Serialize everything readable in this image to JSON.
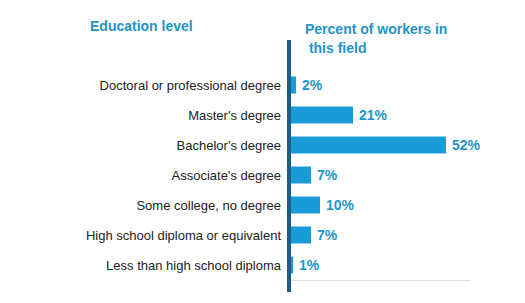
{
  "chart_data": {
    "type": "bar",
    "orientation": "horizontal",
    "ylabel": "Education level",
    "xlabel": "Percent of workers in this field",
    "categories": [
      "Doctoral or professional degree",
      "Master's degree",
      "Bachelor's degree",
      "Associate's degree",
      "Some college, no degree",
      "High school diploma or equivalent",
      "Less than high school diploma"
    ],
    "values": [
      2,
      21,
      52,
      7,
      10,
      7,
      1
    ],
    "value_labels": [
      "2%",
      "21%",
      "52%",
      "7%",
      "10%",
      "7%",
      "1%"
    ],
    "color": "#1a9bd7",
    "xlim": [
      0,
      60
    ],
    "grid": false,
    "data_labels": true,
    "tick_labels": "y"
  }
}
